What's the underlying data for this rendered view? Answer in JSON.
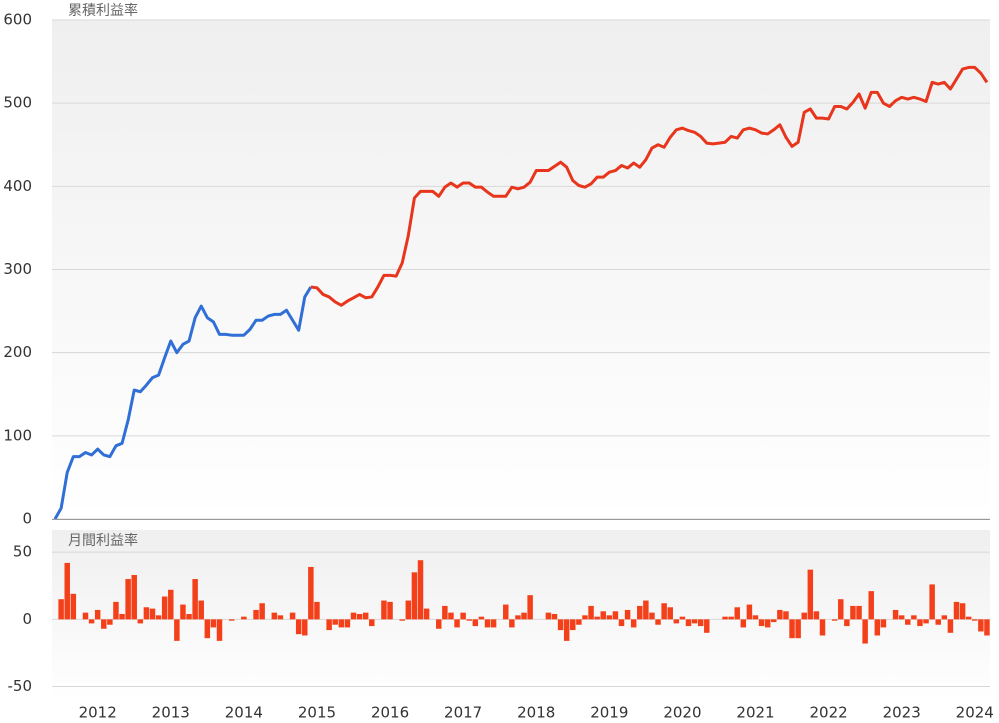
{
  "chart_data": [
    {
      "type": "line",
      "title": "累積利益率",
      "ylim": [
        0,
        600
      ],
      "yticks": [
        0,
        100,
        200,
        300,
        400,
        500,
        600
      ],
      "grid": true,
      "series": [
        {
          "color": "#2f6fd6",
          "values": [
            0,
            13,
            56,
            75,
            75,
            80,
            77,
            84,
            77,
            75,
            88,
            91,
            119,
            155,
            153,
            161,
            170,
            173,
            194,
            214,
            200,
            210,
            214,
            242,
            256,
            242,
            237,
            222,
            222,
            221,
            221,
            221,
            228,
            239,
            239,
            244,
            246,
            246,
            251,
            239,
            227,
            267,
            279,
            null,
            null,
            null,
            null,
            null,
            null,
            null,
            null,
            null,
            null,
            null,
            null,
            null,
            null,
            null,
            null,
            null,
            null,
            null,
            null,
            null,
            null,
            null,
            null,
            null,
            null,
            null,
            null,
            null,
            null,
            null,
            null,
            null,
            null,
            null,
            null,
            null,
            null,
            null,
            null,
            null,
            null,
            null,
            null,
            null,
            null,
            null,
            null,
            null,
            null,
            null,
            null,
            null,
            null,
            null,
            null,
            null,
            null,
            null,
            null,
            null,
            null,
            null,
            null,
            null,
            null,
            null,
            null,
            null,
            null,
            null,
            null,
            null,
            null,
            null,
            null,
            null,
            null,
            null,
            null,
            null,
            null,
            null,
            null,
            null,
            null,
            null,
            null,
            null,
            null,
            null,
            null,
            null,
            null,
            null,
            null,
            null,
            null,
            null,
            null,
            null,
            null,
            null,
            null,
            null,
            null,
            null,
            null,
            null,
            null,
            null
          ]
        },
        {
          "color": "#e8361c",
          "values": [
            null,
            null,
            null,
            null,
            null,
            null,
            null,
            null,
            null,
            null,
            null,
            null,
            null,
            null,
            null,
            null,
            null,
            null,
            null,
            null,
            null,
            null,
            null,
            null,
            null,
            null,
            null,
            null,
            null,
            null,
            null,
            null,
            null,
            null,
            null,
            null,
            null,
            null,
            null,
            null,
            null,
            null,
            279,
            278,
            270,
            267,
            261,
            257,
            262,
            266,
            270,
            266,
            267,
            279,
            293,
            293,
            292,
            308,
            341,
            386,
            394,
            394,
            394,
            388,
            399,
            404,
            399,
            404,
            404,
            399,
            399,
            393,
            388,
            388,
            388,
            399,
            397,
            399,
            405,
            419,
            419,
            419,
            424,
            429,
            423,
            407,
            401,
            399,
            403,
            411,
            411,
            417,
            419,
            425,
            422,
            428,
            423,
            432,
            446,
            450,
            447,
            459,
            468,
            470,
            467,
            465,
            460,
            452,
            451,
            452,
            453,
            460,
            458,
            468,
            470,
            468,
            464,
            463,
            468,
            474,
            459,
            448,
            453,
            489,
            493,
            482,
            482,
            481,
            496,
            496,
            493,
            501,
            511,
            494,
            513,
            513,
            500,
            496,
            503,
            507,
            505,
            507,
            505,
            502,
            525,
            523,
            525,
            517,
            529,
            541,
            543,
            543,
            536,
            525
          ]
        }
      ]
    },
    {
      "type": "bar",
      "title": "月間利益率",
      "color": "#f4401a",
      "ylim": [
        -60,
        65
      ],
      "yticks": [
        -50,
        0,
        50
      ],
      "grid": true,
      "categories": [
        null,
        null,
        null,
        null,
        null,
        null,
        null,
        "2012",
        null,
        null,
        null,
        null,
        null,
        null,
        null,
        null,
        null,
        null,
        null,
        "2013",
        null,
        null,
        null,
        null,
        null,
        null,
        null,
        null,
        null,
        null,
        null,
        "2014",
        null,
        null,
        null,
        null,
        null,
        null,
        null,
        null,
        null,
        null,
        null,
        "2015",
        null,
        null,
        null,
        null,
        null,
        null,
        null,
        null,
        null,
        null,
        null,
        "2016",
        null,
        null,
        null,
        null,
        null,
        null,
        null,
        null,
        null,
        null,
        null,
        "2017",
        null,
        null,
        null,
        null,
        null,
        null,
        null,
        null,
        null,
        null,
        null,
        "2018",
        null,
        null,
        null,
        null,
        null,
        null,
        null,
        null,
        null,
        null,
        null,
        "2019",
        null,
        null,
        null,
        null,
        null,
        null,
        null,
        null,
        null,
        null,
        null,
        "2020",
        null,
        null,
        null,
        null,
        null,
        null,
        null,
        null,
        null,
        null,
        null,
        "2021",
        null,
        null,
        null,
        null,
        null,
        null,
        null,
        null,
        null,
        null,
        null,
        "2022",
        null,
        null,
        null,
        null,
        null,
        null,
        null,
        null,
        null,
        null,
        null,
        "2023",
        null,
        null,
        null,
        null,
        null,
        null,
        null,
        null,
        null,
        null,
        null,
        "2024",
        null,
        null
      ],
      "values": [
        0,
        15,
        42,
        19,
        0,
        5,
        -3,
        7,
        -7,
        -4,
        13,
        4,
        30,
        33,
        -3,
        9,
        8,
        3,
        17,
        22,
        -16,
        11,
        4,
        30,
        14,
        -14,
        -6,
        -16,
        0,
        -1,
        0,
        2,
        0,
        7,
        12,
        0,
        5,
        3,
        0,
        5,
        -11,
        -12,
        39,
        13,
        0,
        -8,
        -4,
        -6,
        -6,
        5,
        4,
        5,
        -5,
        0,
        14,
        13,
        0,
        -1,
        14,
        35,
        44,
        8,
        0,
        -7,
        10,
        5,
        -6,
        5,
        -1,
        -5,
        2,
        -6,
        -6,
        0,
        11,
        -6,
        3,
        5,
        18,
        0,
        0,
        5,
        4,
        -8,
        -16,
        -8,
        -4,
        3,
        10,
        2,
        6,
        3,
        6,
        -5,
        7,
        -6,
        10,
        14,
        5,
        -4,
        12,
        9,
        -3,
        2,
        -5,
        -3,
        -5,
        -10,
        0,
        0,
        2,
        2,
        9,
        -6,
        11,
        3,
        -5,
        -6,
        -2,
        7,
        6,
        -14,
        -14,
        5,
        37,
        6,
        -12,
        0,
        -1,
        15,
        -5,
        10,
        10,
        -18,
        21,
        -12,
        -6,
        0,
        7,
        3,
        -4,
        3,
        -5,
        -3,
        26,
        -4,
        3,
        -10,
        13,
        12,
        2,
        -1,
        -9,
        -12
      ]
    }
  ]
}
